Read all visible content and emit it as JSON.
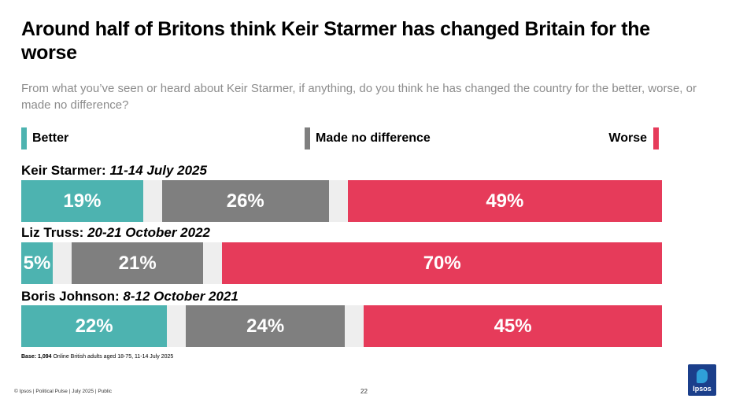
{
  "title": "Around half of Britons think Keir Starmer has changed Britain for the worse",
  "subtitle": "From what you’ve seen or heard about Keir Starmer, if anything, do you think he has changed the country for the better, worse, or made no difference?",
  "colors": {
    "better": "#4db3b0",
    "no_difference": "#7f7f7f",
    "worse": "#e63b5a",
    "track": "#eeeeee"
  },
  "chart_data": {
    "type": "bar",
    "orientation": "horizontal-stacked-with-gaps",
    "title": "Around half of Britons think Keir Starmer has changed Britain for the worse",
    "legend": [
      {
        "key": "better",
        "label": "Better"
      },
      {
        "key": "no_difference",
        "label": "Made no difference"
      },
      {
        "key": "worse",
        "label": "Worse"
      }
    ],
    "rows": [
      {
        "name": "Keir Starmer: ",
        "date": "11-14 July 2025",
        "values": {
          "better": 19,
          "no_difference": 26,
          "worse": 49
        },
        "labels": {
          "better": "19%",
          "no_difference": "26%",
          "worse": "49%"
        }
      },
      {
        "name": "Liz Truss: ",
        "date": "20-21 October 2022",
        "values": {
          "better": 5,
          "no_difference": 21,
          "worse": 70
        },
        "labels": {
          "better": "5%",
          "no_difference": "21%",
          "worse": "70%"
        }
      },
      {
        "name": "Boris Johnson: ",
        "date": "8-12 October 2021",
        "values": {
          "better": 22,
          "no_difference": 24,
          "worse": 45
        },
        "labels": {
          "better": "22%",
          "no_difference": "24%",
          "worse": "45%"
        }
      }
    ],
    "xlim": [
      0,
      100
    ]
  },
  "base": {
    "label": "Base: 1,094",
    "text": " Online British adults aged 18-75, 11-14 July 2025"
  },
  "footer": "© Ipsos | Political Pulse | July 2025 | Public",
  "page_number": "22",
  "logo_text": "Ipsos"
}
